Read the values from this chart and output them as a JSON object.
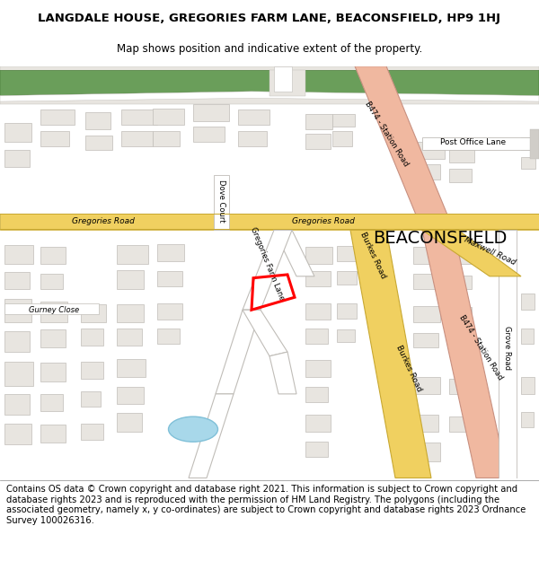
{
  "title_line1": "LANGDALE HOUSE, GREGORIES FARM LANE, BEACONSFIELD, HP9 1HJ",
  "title_line2": "Map shows position and indicative extent of the property.",
  "footer_text": "Contains OS data © Crown copyright and database right 2021. This information is subject to Crown copyright and database rights 2023 and is reproduced with the permission of HM Land Registry. The polygons (including the associated geometry, namely x, y co-ordinates) are subject to Crown copyright and database rights 2023 Ordnance Survey 100026316.",
  "bg_color": "#f5f3f0",
  "road_yellow": "#f0d060",
  "road_yellow_edge": "#c8a832",
  "road_white": "#ffffff",
  "road_gray_edge": "#c0bdb8",
  "building_color": "#e8e5e0",
  "building_edge": "#c0bdb8",
  "red_poly_color": "#ff0000",
  "water_color": "#a8d8ea",
  "green_band": "#6a9e5a",
  "green_edge": "#4a7e3a",
  "pink_road": "#f0b8a0",
  "pink_road_edge": "#c89080",
  "text_color": "#000000",
  "title_fontsize": 9.5,
  "subtitle_fontsize": 8.5,
  "footer_fontsize": 7.2,
  "beaconsfield_fontsize": 14
}
